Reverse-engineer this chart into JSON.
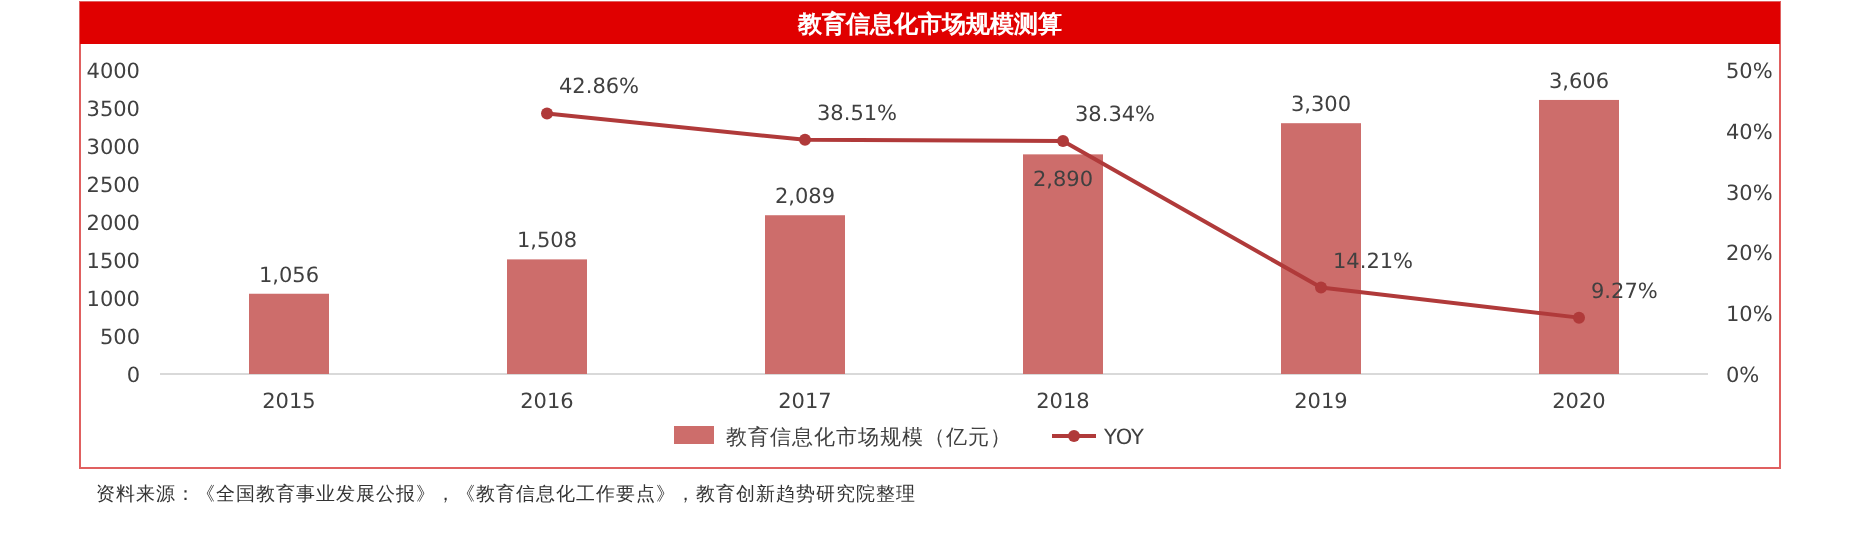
{
  "chart_data": {
    "type": "bar",
    "title": "教育信息化市场规模测算",
    "categories": [
      "2015",
      "2016",
      "2017",
      "2018",
      "2019",
      "2020"
    ],
    "series": [
      {
        "name": "教育信息化市场规模（亿元）",
        "color": "#cd6d6b",
        "values": [
          1056,
          1508,
          2089,
          2890,
          3300,
          3606
        ],
        "value_labels": [
          "1,056",
          "1,508",
          "2,089",
          "2,890",
          "3,300",
          "3,606"
        ]
      },
      {
        "name": "YOY",
        "type": "line",
        "axis": "y2",
        "color": "#b03a3a",
        "values": [
          null,
          42.86,
          38.51,
          38.34,
          14.21,
          9.27
        ],
        "value_labels": [
          null,
          "42.86%",
          "38.51%",
          "38.34%",
          "14.21%",
          "9.27%"
        ]
      }
    ],
    "ylim": [
      0,
      4000
    ],
    "yticks": [
      0,
      500,
      1000,
      1500,
      2000,
      2500,
      3000,
      3500,
      4000
    ],
    "y2lim": [
      0,
      50
    ],
    "y2ticks": [
      {
        "value": 0,
        "label": "0%"
      },
      {
        "value": 10,
        "label": "10%"
      },
      {
        "value": 20,
        "label": "20%"
      },
      {
        "value": 30,
        "label": "30%"
      },
      {
        "value": 40,
        "label": "40%"
      },
      {
        "value": 50,
        "label": "50%"
      }
    ],
    "marker": "circle",
    "legend": "bottom",
    "grid": false,
    "annotations": [
      "资料来源：《全国教育事业发展公报》，《教育信息化工作要点》，教育创新趋势研究院整理"
    ]
  }
}
